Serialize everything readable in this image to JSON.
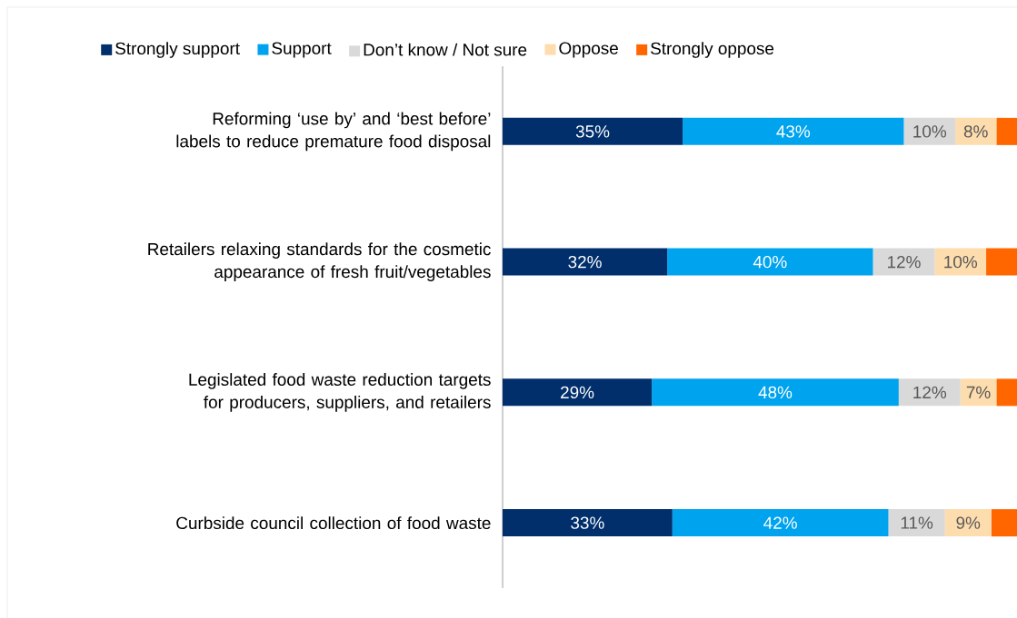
{
  "chart_data": {
    "type": "bar",
    "orientation": "horizontal",
    "stacked": true,
    "legend": "top",
    "categories": [
      "Reforming ‘use by’ and ‘best before’ labels to reduce premature food disposal",
      "Retailers relaxing standards for the cosmetic appearance of fresh fruit/vegetables",
      "Legislated food waste reduction targets for producers, suppliers, and retailers",
      "Curbside council collection of food waste"
    ],
    "xlim": [
      0,
      100
    ],
    "series": [
      {
        "name": "Strongly support",
        "color": "#002f6c",
        "values": [
          35,
          32,
          29,
          33
        ],
        "value_labels": [
          "35%",
          "32%",
          "29%",
          "33%"
        ]
      },
      {
        "name": "Support",
        "color": "#00a3ee",
        "values": [
          43,
          40,
          48,
          42
        ],
        "value_labels": [
          "43%",
          "40%",
          "48%",
          "42%"
        ]
      },
      {
        "name": "Don’t know / Not sure",
        "color": "#d9d9d9",
        "values": [
          10,
          12,
          12,
          11
        ],
        "value_labels": [
          "10%",
          "12%",
          "12%",
          "11%"
        ]
      },
      {
        "name": "Oppose",
        "color": "#fddcae",
        "values": [
          8,
          10,
          7,
          9
        ],
        "value_labels": [
          "8%",
          "10%",
          "7%",
          "9%"
        ]
      },
      {
        "name": "Strongly oppose",
        "color": "#ff6600",
        "values": [
          4,
          6,
          4,
          5
        ],
        "value_labels": [
          null,
          null,
          null,
          null
        ]
      }
    ]
  }
}
